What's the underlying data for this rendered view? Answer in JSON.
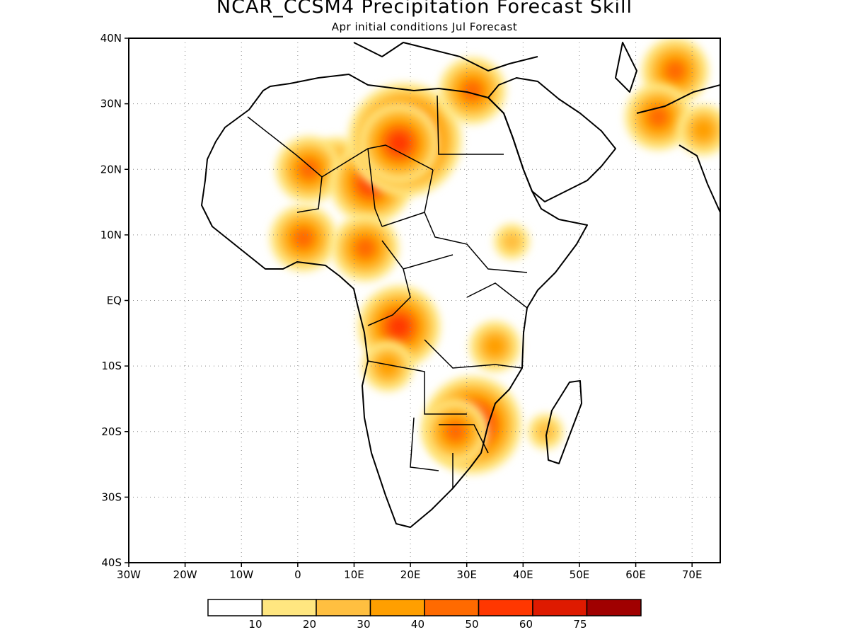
{
  "title": "NCAR_CCSM4 Precipitation Forecast Skill",
  "subtitle": "Apr initial conditions  Jul Forecast",
  "map": {
    "lon_range": [
      -30,
      75
    ],
    "lat_range": [
      -40,
      40
    ],
    "lat_ticks": [
      {
        "value": 40,
        "label": "40N"
      },
      {
        "value": 30,
        "label": "30N"
      },
      {
        "value": 20,
        "label": "20N"
      },
      {
        "value": 10,
        "label": "10N"
      },
      {
        "value": 0,
        "label": "EQ"
      },
      {
        "value": -10,
        "label": "10S"
      },
      {
        "value": -20,
        "label": "20S"
      },
      {
        "value": -30,
        "label": "30S"
      },
      {
        "value": -40,
        "label": "40S"
      }
    ],
    "lon_ticks": [
      {
        "value": -30,
        "label": "30W"
      },
      {
        "value": -20,
        "label": "20W"
      },
      {
        "value": -10,
        "label": "10W"
      },
      {
        "value": 0,
        "label": "0"
      },
      {
        "value": 10,
        "label": "10E"
      },
      {
        "value": 20,
        "label": "20E"
      },
      {
        "value": 30,
        "label": "30E"
      },
      {
        "value": 40,
        "label": "40E"
      },
      {
        "value": 50,
        "label": "50E"
      },
      {
        "value": 60,
        "label": "60E"
      },
      {
        "value": 70,
        "label": "70E"
      }
    ],
    "skill_regions": [
      {
        "lon": 7,
        "lat": 21,
        "level": 3
      },
      {
        "lon": 2,
        "lat": 20,
        "level": 4
      },
      {
        "lon": 13,
        "lat": 18,
        "level": 5
      },
      {
        "lon": 19,
        "lat": 24.5,
        "level": 7
      },
      {
        "lon": 18,
        "lat": 24,
        "level": 5
      },
      {
        "lon": 31,
        "lat": 32,
        "level": 4
      },
      {
        "lon": 67,
        "lat": 35,
        "level": 4
      },
      {
        "lon": 64,
        "lat": 28,
        "level": 4
      },
      {
        "lon": 72,
        "lat": 26,
        "level": 3
      },
      {
        "lon": 1,
        "lat": 9.5,
        "level": 4
      },
      {
        "lon": 12,
        "lat": 8,
        "level": 4
      },
      {
        "lon": 38,
        "lat": 9,
        "level": 2
      },
      {
        "lon": 18,
        "lat": -4,
        "level": 5
      },
      {
        "lon": 16,
        "lat": -10,
        "level": 3
      },
      {
        "lon": 35,
        "lat": -7,
        "level": 3
      },
      {
        "lon": 31,
        "lat": -19,
        "level": 6
      },
      {
        "lon": 28,
        "lat": -20,
        "level": 4
      },
      {
        "lon": 44,
        "lat": -20,
        "level": 2
      }
    ]
  },
  "colorbar": {
    "colors": [
      "#ffffff",
      "#ffe680",
      "#ffbf40",
      "#ff9f00",
      "#ff6a00",
      "#ff3700",
      "#de1a00",
      "#a00000"
    ],
    "labels": [
      "10",
      "20",
      "30",
      "40",
      "50",
      "60",
      "75"
    ]
  }
}
